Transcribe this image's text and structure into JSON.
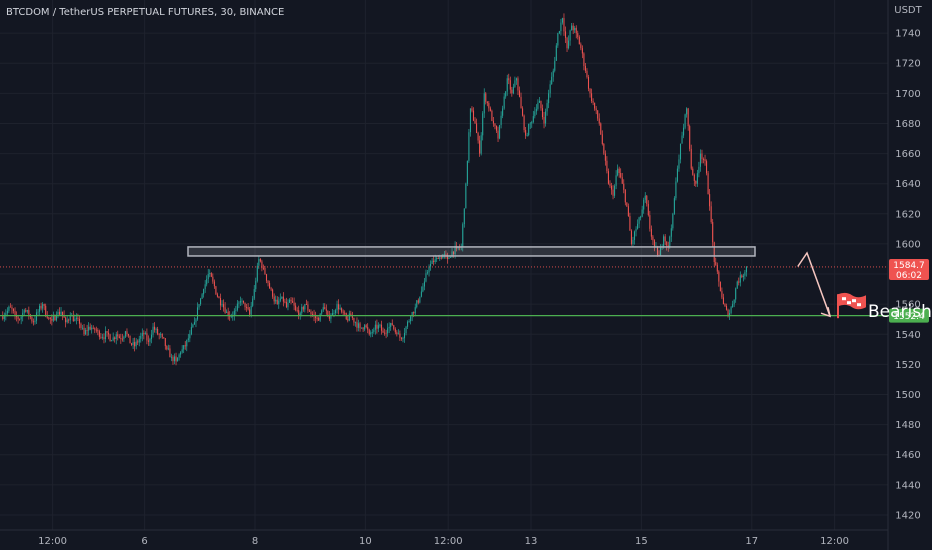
{
  "chart_data": {
    "type": "candlestick",
    "title": "BTCDOM / TetherUS PERPETUAL FUTURES, 30, BINANCE",
    "currency": "USDT",
    "ylim": [
      1410,
      1762
    ],
    "y_ticks": [
      1420,
      1440,
      1460,
      1480,
      1500,
      1520,
      1540,
      1560,
      1580,
      1600,
      1620,
      1640,
      1660,
      1680,
      1700,
      1720,
      1740
    ],
    "x_ticks": [
      {
        "label": "12:00",
        "bar": 11
      },
      {
        "label": "6",
        "bar": 31
      },
      {
        "label": "8",
        "bar": 55
      },
      {
        "label": "10",
        "bar": 79
      },
      {
        "label": "12:00",
        "bar": 97
      },
      {
        "label": "13",
        "bar": 115
      },
      {
        "label": "15",
        "bar": 139
      },
      {
        "label": "17",
        "bar": 163
      },
      {
        "label": "12:00",
        "bar": 181
      }
    ],
    "price_path": [
      1552,
      1554,
      1558,
      1552,
      1550,
      1556,
      1553,
      1548,
      1555,
      1560,
      1551,
      1549,
      1553,
      1555,
      1548,
      1552,
      1550,
      1547,
      1540,
      1545,
      1544,
      1542,
      1538,
      1541,
      1536,
      1540,
      1537,
      1542,
      1534,
      1532,
      1537,
      1540,
      1535,
      1545,
      1540,
      1538,
      1530,
      1525,
      1522,
      1528,
      1532,
      1540,
      1548,
      1560,
      1570,
      1580,
      1575,
      1565,
      1560,
      1555,
      1552,
      1556,
      1562,
      1558,
      1553,
      1570,
      1590,
      1584,
      1574,
      1565,
      1560,
      1565,
      1558,
      1562,
      1556,
      1554,
      1560,
      1555,
      1552,
      1549,
      1558,
      1552,
      1554,
      1560,
      1555,
      1550,
      1552,
      1548,
      1544,
      1546,
      1540,
      1543,
      1546,
      1541,
      1544,
      1546,
      1540,
      1537,
      1545,
      1552,
      1558,
      1565,
      1575,
      1585,
      1588,
      1590,
      1593,
      1590,
      1595,
      1597,
      1598,
      1640,
      1690,
      1680,
      1660,
      1700,
      1690,
      1680,
      1670,
      1690,
      1710,
      1700,
      1710,
      1690,
      1672,
      1680,
      1688,
      1695,
      1680,
      1700,
      1715,
      1740,
      1750,
      1730,
      1745,
      1740,
      1730,
      1715,
      1700,
      1690,
      1680,
      1660,
      1640,
      1632,
      1650,
      1640,
      1625,
      1600,
      1610,
      1618,
      1632,
      1610,
      1598,
      1592,
      1605,
      1598,
      1620,
      1650,
      1672,
      1690,
      1650,
      1640,
      1660,
      1655,
      1625,
      1588,
      1575,
      1560,
      1552,
      1560,
      1575,
      1578,
      1585
    ],
    "resistance_zone": {
      "top": 1598,
      "bottom": 1592
    },
    "support_level": 1552.4,
    "projection": [
      {
        "bar": 173,
        "price": 1585
      },
      {
        "bar": 175,
        "price": 1594
      },
      {
        "bar": 180,
        "price": 1552
      }
    ],
    "annotation": "Bearish Targe",
    "last_price": {
      "value": "1584.7",
      "countdown": "06:02",
      "level": 1584.7
    },
    "support_label": "1552.4",
    "colors": {
      "up": "#26a69a",
      "down": "#ef5350",
      "support": "#4caf50",
      "zone": "#b2b5be",
      "projection": "#f5c6c0",
      "background": "#131722"
    }
  }
}
